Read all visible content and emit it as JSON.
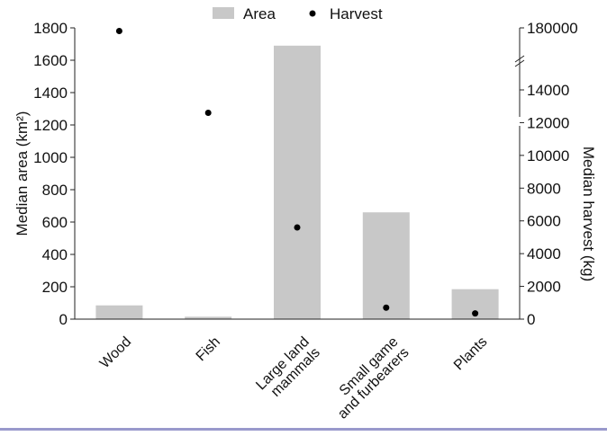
{
  "chart_data": {
    "type": "bar",
    "categories": [
      "Wood",
      "Fish",
      "Large land mammals",
      "Small game and furbearers",
      "Plants"
    ],
    "category_lines": [
      [
        "Wood"
      ],
      [
        "Fish"
      ],
      [
        "Large land",
        "mammals"
      ],
      [
        "Small game",
        "and furbearers"
      ],
      [
        "Plants"
      ]
    ],
    "series": [
      {
        "name": "Area",
        "axis": "left",
        "mark": "bar",
        "values": [
          85,
          15,
          1690,
          660,
          185
        ]
      },
      {
        "name": "Harvest",
        "axis": "right",
        "mark": "point",
        "values": [
          171500,
          12600,
          5600,
          700,
          350
        ]
      }
    ],
    "title": "",
    "ylabel": "Median area (km²)",
    "y2label": "Median harvest (kg)",
    "ylim": [
      0,
      1800
    ],
    "yticks": [
      0,
      200,
      400,
      600,
      800,
      1000,
      1200,
      1400,
      1600,
      1800
    ],
    "y2lim": [
      0,
      180000
    ],
    "y2_axis_break": [
      14000,
      180000
    ],
    "y2ticks": [
      0,
      2000,
      4000,
      6000,
      8000,
      10000,
      12000,
      14000,
      180000
    ],
    "legend": {
      "placement": "top",
      "entries": [
        "Area",
        "Harvest"
      ]
    },
    "colors": {
      "bar": "#c8c8c8",
      "point": "#000000",
      "bottom_rule": "#9999cc"
    },
    "grid": false
  }
}
